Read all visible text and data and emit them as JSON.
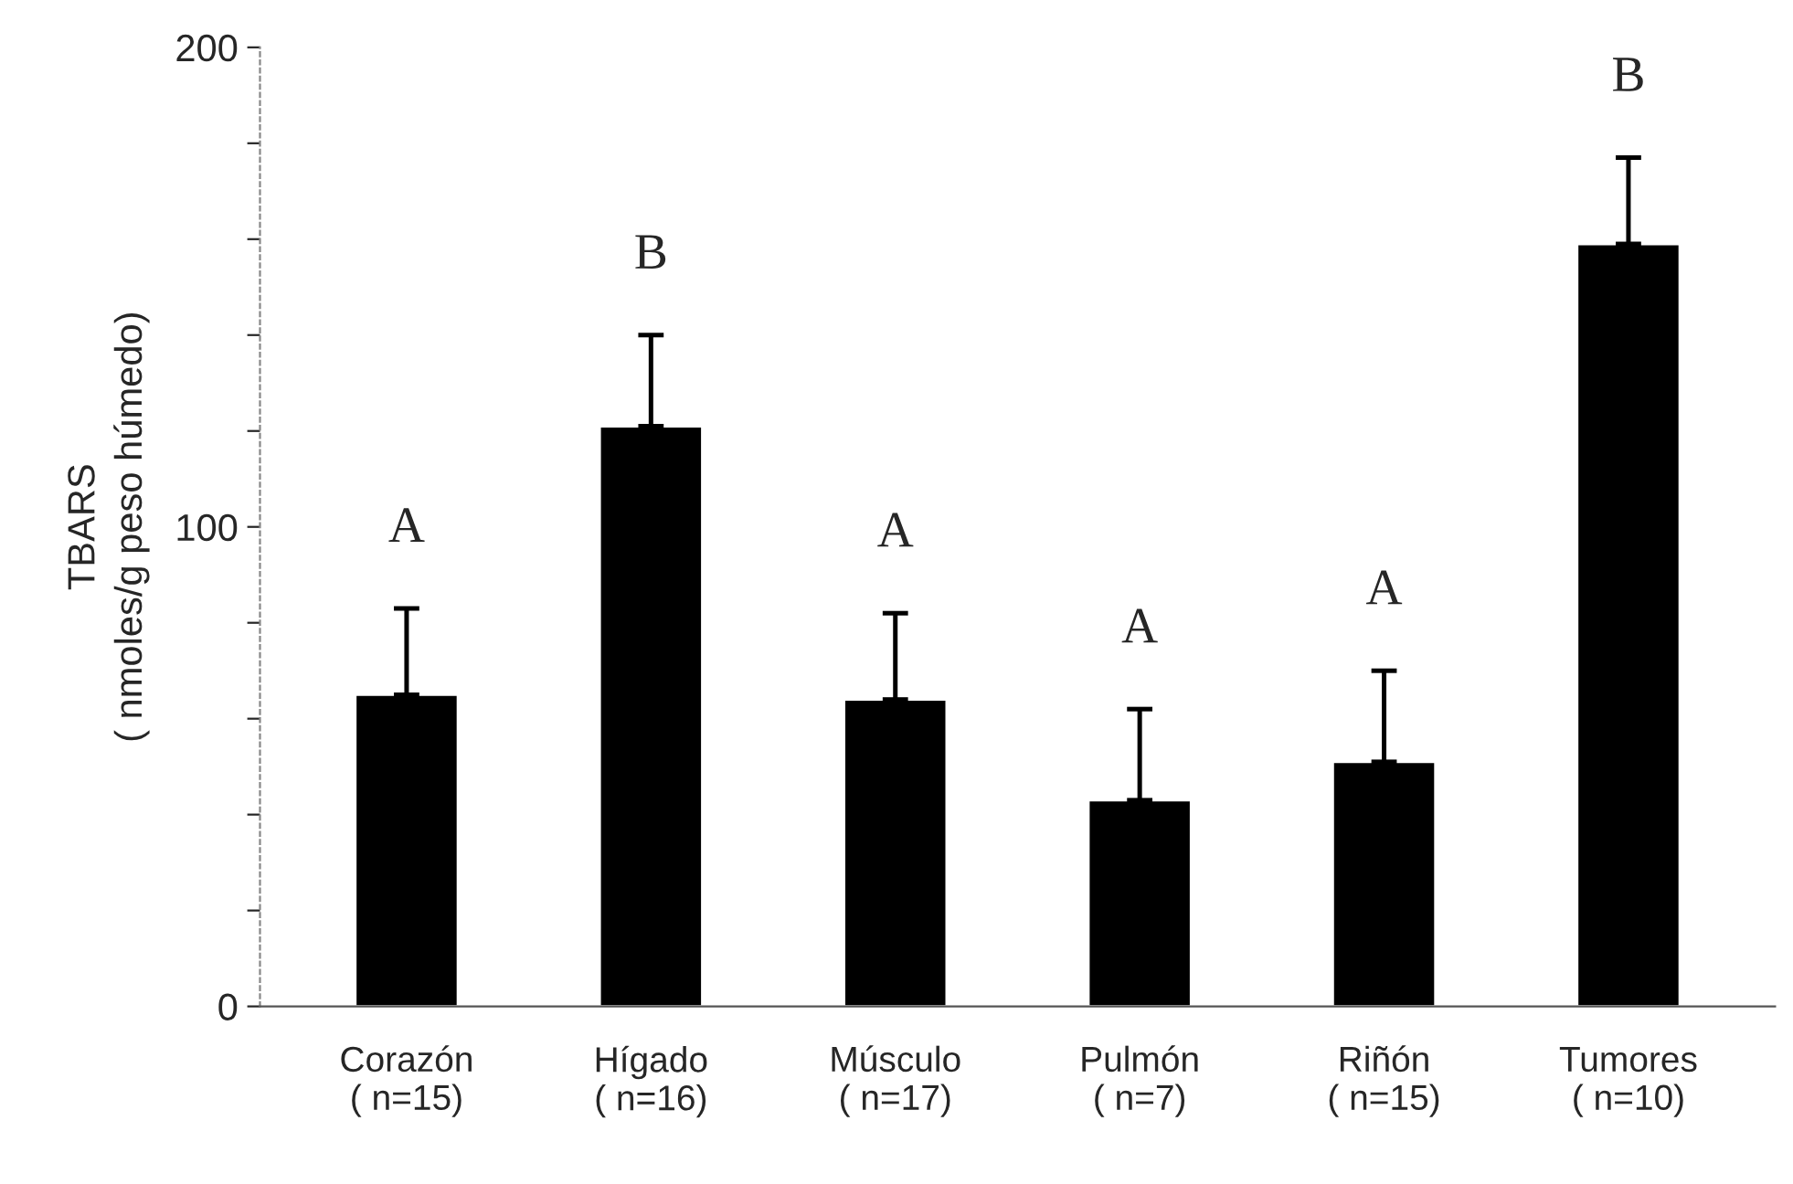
{
  "chart_data": {
    "type": "bar",
    "ylabel": "TBARS\n( nmoles/g peso húmedo)",
    "categories": [
      "Corazón\n( n=15)",
      "Hígado\n( n=16)",
      "Músculo\n( n=17)",
      "Pulmón\n( n=7)",
      "Riñón\n( n=15)",
      "Tumores\n( n=10)"
    ],
    "values": [
      65,
      121,
      64,
      43,
      51,
      159
    ],
    "errors": [
      [
        65,
        83
      ],
      [
        121,
        140
      ],
      [
        64,
        82
      ],
      [
        43,
        62
      ],
      [
        51,
        70
      ],
      [
        159,
        177
      ]
    ],
    "color": "#000000",
    "ylim": [
      0,
      200
    ],
    "yticks": [
      0,
      {
        "value": 20,
        "label": null
      },
      {
        "value": 40,
        "label": null
      },
      {
        "value": 60,
        "label": null
      },
      {
        "value": 80,
        "label": null
      },
      100,
      {
        "value": 120,
        "label": null
      },
      {
        "value": 140,
        "label": null
      },
      {
        "value": 160,
        "label": null
      },
      {
        "value": 180,
        "label": null
      },
      200
    ],
    "grid": false,
    "legend": false,
    "annotations": [
      "A",
      "B",
      "A",
      "A",
      "A",
      "B"
    ]
  }
}
